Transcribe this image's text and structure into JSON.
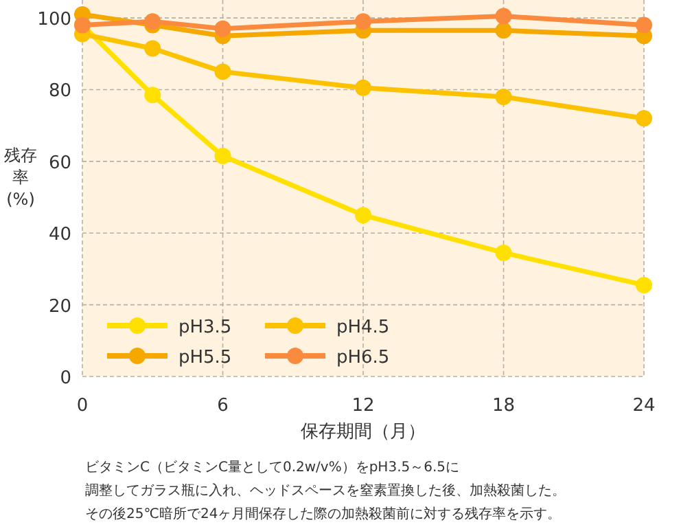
{
  "chart_data": {
    "type": "line",
    "xlabel": "保存期間（月）",
    "ylabel": "残存率(%)",
    "x": [
      0,
      3,
      6,
      12,
      18,
      24
    ],
    "series": [
      {
        "name": "pH3.5",
        "color": "#ffe000",
        "values": [
          98,
          78.5,
          61.5,
          45,
          34.5,
          25.5
        ]
      },
      {
        "name": "pH4.5",
        "color": "#fcc200",
        "values": [
          95.5,
          91.5,
          85,
          80.5,
          78,
          72
        ]
      },
      {
        "name": "pH5.5",
        "color": "#f5a800",
        "values": [
          101,
          98,
          95,
          96.5,
          96.5,
          95
        ]
      },
      {
        "name": "pH6.5",
        "color": "#f98a3e",
        "values": [
          98,
          99,
          97,
          99,
          100.5,
          98
        ]
      }
    ],
    "xlim": [
      0,
      24
    ],
    "xticks": [
      0,
      6,
      12,
      18,
      24
    ],
    "ylim": [
      0,
      105
    ],
    "yticks": [
      0,
      20,
      40,
      60,
      80,
      100
    ],
    "grid": true,
    "legend": "bottom left",
    "marker": "circle",
    "line_style": "solid",
    "annotations": [
      "ビタミンC（ビタミンC量として0.2w/v%）をpH3.5～6.5に",
      "調整してガラス瓶に入れ、ヘッドスペースを窒素置換した後、加熱殺菌した。",
      "その後25℃暗所で24ヶ月間保存した際の加熱殺菌前に対する残存率を示す。"
    ]
  }
}
